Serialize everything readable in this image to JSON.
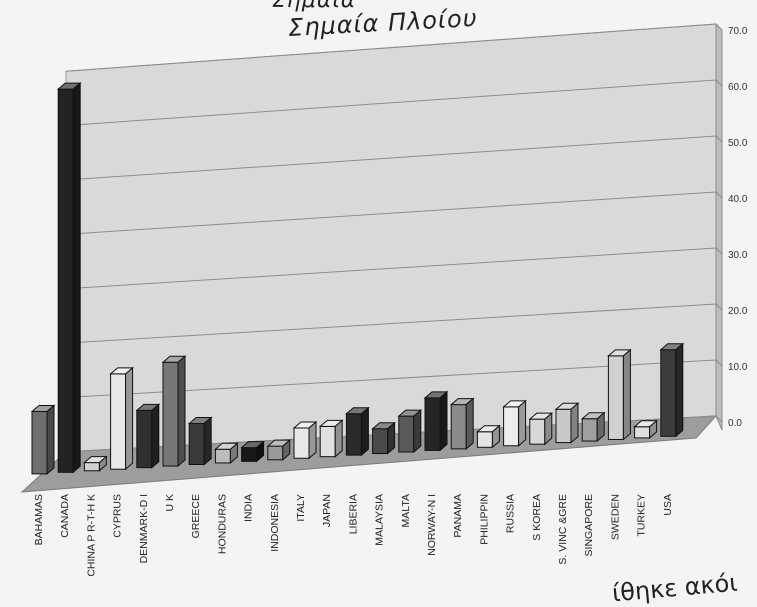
{
  "chart_data": {
    "type": "bar",
    "title_line1": "Σημαία",
    "title_line2": "Σημαία Πλοίου",
    "bottom_note": "ίθηκε ακόι",
    "ylim": [
      0,
      70
    ],
    "y_ticks": [
      "70.0",
      "60.0",
      "50.0",
      "40.0",
      "30.0",
      "20.0",
      "10.0",
      "0.0"
    ],
    "grid": true,
    "categories": [
      "BAHAMAS",
      "CANADA",
      "CHINA P R-T-H K",
      "CYPRUS",
      "DENMARK-D I",
      "U K",
      "GREECE",
      "HONDURAS",
      "INDIA",
      "INDONESIA",
      "ITALY",
      "JAPAN",
      "LIBERIA",
      "MALAYSIA",
      "MALTA",
      "NORWAY-N I",
      "PANAMA",
      "PHILIPPIN",
      "RUSSIA",
      "S KOREA",
      "S. VINC &GRE",
      "SINGAPORE",
      "SWEDEN",
      "TURKEY",
      "USA"
    ],
    "values": [
      11.5,
      70.5,
      1.5,
      17.5,
      10.5,
      19.0,
      7.5,
      2.5,
      2.5,
      2.5,
      5.5,
      5.5,
      7.5,
      4.5,
      6.5,
      9.5,
      8.0,
      2.8,
      7.0,
      4.5,
      6.0,
      4.0,
      15.0,
      2.0,
      15.5
    ],
    "colors": [
      "#6f6f6f",
      "#232323",
      "#d2d2d2",
      "#e8e8e8",
      "#2f2f2f",
      "#777777",
      "#3a3a3a",
      "#bcbcbc",
      "#181818",
      "#9a9a9a",
      "#e8e8e8",
      "#e0e0e0",
      "#2b2b2b",
      "#4a4a4a",
      "#5a5a5a",
      "#262626",
      "#8a8a8a",
      "#e4e4e4",
      "#ececec",
      "#d8d8d8",
      "#c8c8c8",
      "#9f9f9f",
      "#d0d0d0",
      "#dedede",
      "#3c3c3c"
    ]
  }
}
